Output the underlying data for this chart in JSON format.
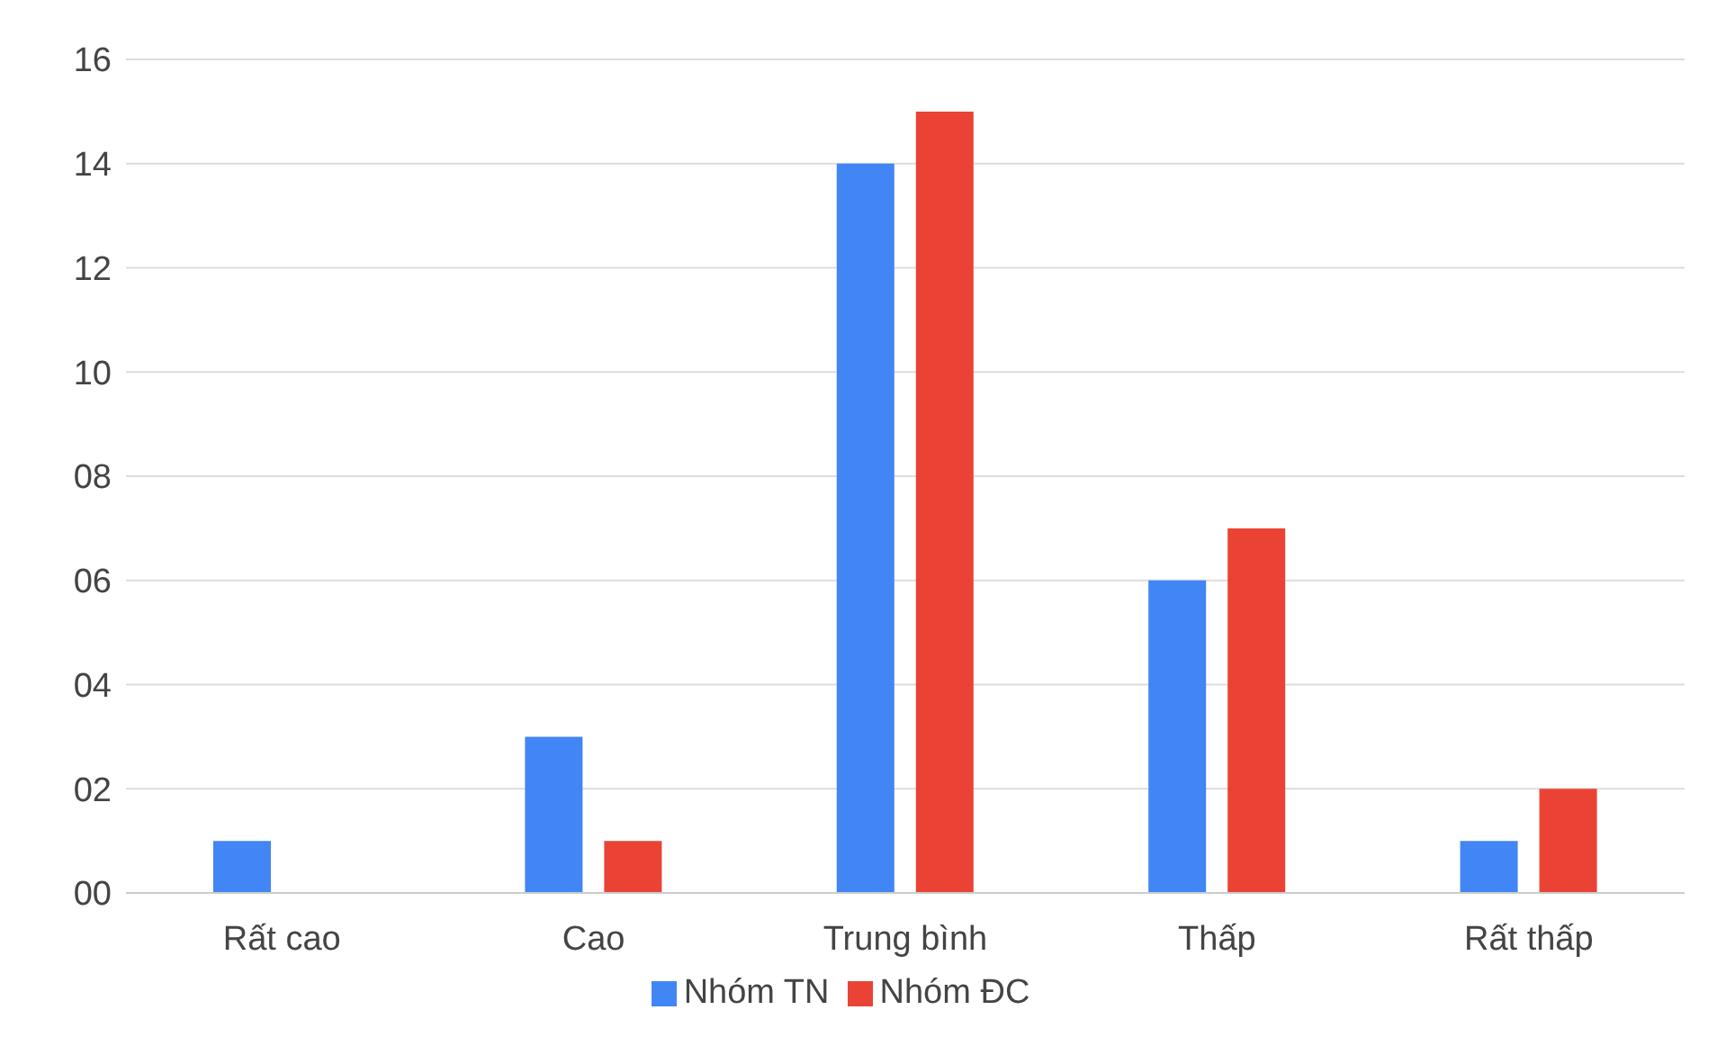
{
  "chart_data": {
    "type": "bar",
    "categories": [
      "Rất cao",
      "Cao",
      "Trung bình",
      "Thấp",
      "Rất thấp"
    ],
    "series": [
      {
        "name": "Nhóm TN",
        "color": "#4285f4",
        "values": [
          1,
          3,
          14,
          6,
          1
        ]
      },
      {
        "name": "Nhóm ĐC",
        "color": "#ea4335",
        "values": [
          0,
          1,
          15,
          7,
          2
        ]
      }
    ],
    "ylim": [
      0,
      16
    ],
    "yticks": [
      {
        "value": 0,
        "label": "00"
      },
      {
        "value": 2,
        "label": "02"
      },
      {
        "value": 4,
        "label": "04"
      },
      {
        "value": 6,
        "label": "06"
      },
      {
        "value": 8,
        "label": "08"
      },
      10,
      12,
      14,
      16
    ],
    "grid": "y",
    "legend": "bottom"
  }
}
